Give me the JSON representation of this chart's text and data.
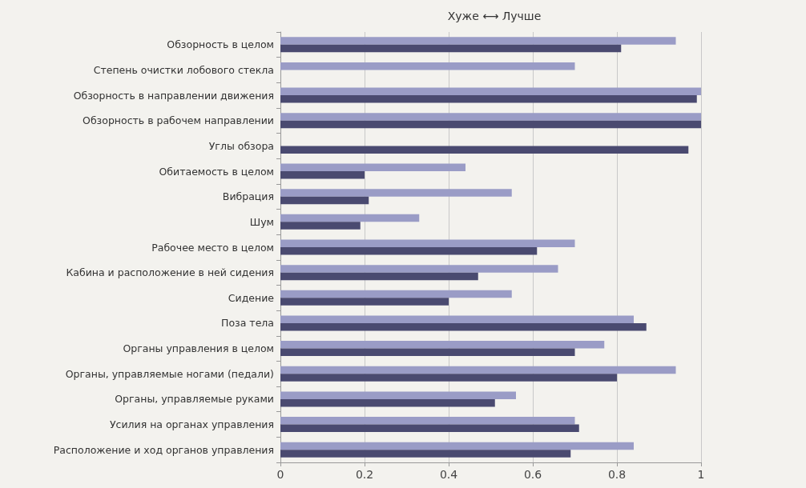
{
  "chart_data": {
    "type": "bar",
    "orientation": "horizontal",
    "title": "Хуже ⟷ Лучше",
    "categories": [
      "Обзорность в целом",
      "Степень очистки лобового стекла",
      "Обзорность в направлении движения",
      "Обзорность в рабочем направлении",
      "Углы обзора",
      "Обитаемость в целом",
      "Вибрация",
      "Шум",
      "Рабочее место в целом",
      "Кабина и расположение в ней сидения",
      "Сидение",
      "Поза тела",
      "Органы управления в целом",
      "Органы, управляемые ногами (педали)",
      "Органы, управляемые руками",
      "Усилия на органах управления",
      "Расположение и ход органов управления"
    ],
    "series": [
      {
        "color": "#9a9cc6",
        "values": [
          0.94,
          0.7,
          1.0,
          1.0,
          null,
          0.44,
          0.55,
          0.33,
          0.7,
          0.66,
          0.55,
          0.84,
          0.77,
          0.94,
          0.56,
          0.7,
          0.84
        ]
      },
      {
        "color": "#4a4a70",
        "values": [
          0.81,
          null,
          0.99,
          1.0,
          0.97,
          0.2,
          0.21,
          0.19,
          0.61,
          0.47,
          0.4,
          0.87,
          0.7,
          0.8,
          0.51,
          0.71,
          0.69
        ]
      }
    ],
    "xlim": [
      0,
      1
    ],
    "xticks": [
      0,
      0.2,
      0.4,
      0.6,
      0.8,
      1
    ],
    "grid": "x"
  }
}
